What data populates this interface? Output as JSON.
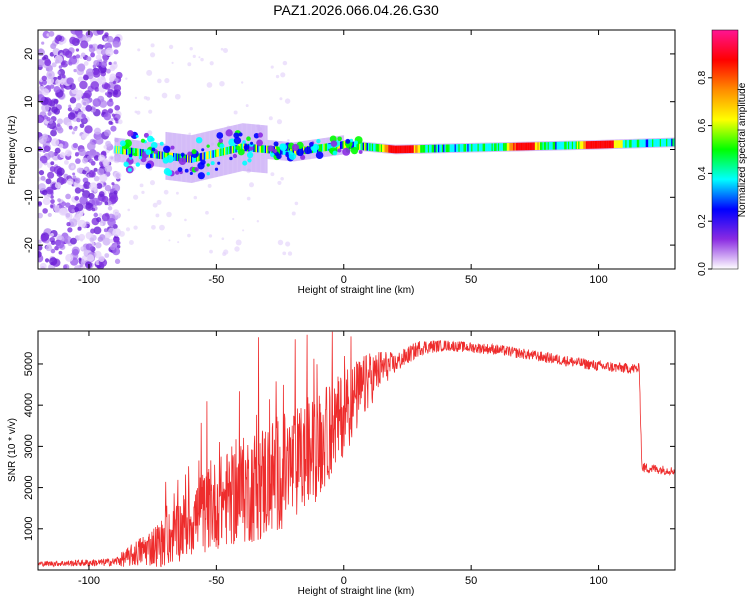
{
  "chart_data": [
    {
      "type": "heatmap",
      "title": "PAZ1.2026.066.04.26.G30",
      "xlabel": "Height of straight line (km)",
      "ylabel": "Frequency (Hz)",
      "xlim": [
        -120,
        130
      ],
      "ylim": [
        -25,
        25
      ],
      "xticks": [
        -100,
        -50,
        0,
        50,
        100
      ],
      "yticks": [
        -20,
        -10,
        0,
        10,
        20
      ],
      "colorbar": {
        "label": "Normalized spectral amplitude",
        "range": [
          0,
          1
        ],
        "ticks": [
          "0.0",
          "0.2",
          "0.4",
          "0.6",
          "0.8"
        ],
        "tick_values": [
          0.0,
          0.2,
          0.4,
          0.6,
          0.8
        ],
        "colors": [
          "#ffffff",
          "#8a2be2",
          "#0000ff",
          "#00ffff",
          "#00ff00",
          "#ffff00",
          "#ff8c00",
          "#ff0000",
          "#ff1493"
        ]
      },
      "ridge": {
        "description": "signal ridge near 0 Hz",
        "x_start": -90,
        "x_end": 130,
        "bends": [
          {
            "x": -90,
            "y": 0.0
          },
          {
            "x": -60,
            "y": -2.0
          },
          {
            "x": -40,
            "y": 0.5
          },
          {
            "x": -20,
            "y": -0.5
          },
          {
            "x": 0,
            "y": 1.0
          },
          {
            "x": 20,
            "y": 0.0
          },
          {
            "x": 100,
            "y": 1.0
          },
          {
            "x": 130,
            "y": 1.5
          }
        ],
        "peaks": [
          {
            "x": 22,
            "amplitude": 0.85
          },
          {
            "x": 100,
            "amplitude": 1.0
          },
          {
            "x": 70,
            "amplitude": 0.6
          }
        ]
      }
    },
    {
      "type": "line",
      "title": "",
      "xlabel": "Height of straight line (km)",
      "ylabel": "SNR (10 * v/v)",
      "xlim": [
        -120,
        130
      ],
      "ylim": [
        0,
        5800
      ],
      "xticks": [
        -100,
        -50,
        0,
        50,
        100
      ],
      "yticks": [
        1000,
        2000,
        3000,
        4000,
        5000
      ],
      "series": [
        {
          "name": "SNR",
          "color": "#ee2c2c",
          "envelope_x": [
            -120,
            -95,
            -90,
            -85,
            -80,
            -70,
            -60,
            -50,
            -40,
            -30,
            -20,
            -10,
            0,
            5,
            10,
            15,
            20,
            30,
            40,
            50,
            60,
            70,
            80,
            90,
            100,
            110,
            116,
            117,
            118,
            130
          ],
          "envelope_y": [
            150,
            180,
            200,
            300,
            450,
            700,
            1200,
            1600,
            1900,
            2200,
            2500,
            3000,
            3800,
            4200,
            4600,
            4900,
            5000,
            5400,
            5450,
            5400,
            5350,
            5250,
            5150,
            5050,
            4950,
            4900,
            4880,
            2500,
            2480,
            2400
          ],
          "noise_amplitude_x": [
            -120,
            -90,
            -60,
            -30,
            -10,
            5,
            20,
            40,
            117,
            130
          ],
          "noise_amplitude_y": [
            60,
            100,
            900,
            1500,
            1300,
            900,
            250,
            130,
            130,
            100
          ]
        }
      ]
    }
  ]
}
